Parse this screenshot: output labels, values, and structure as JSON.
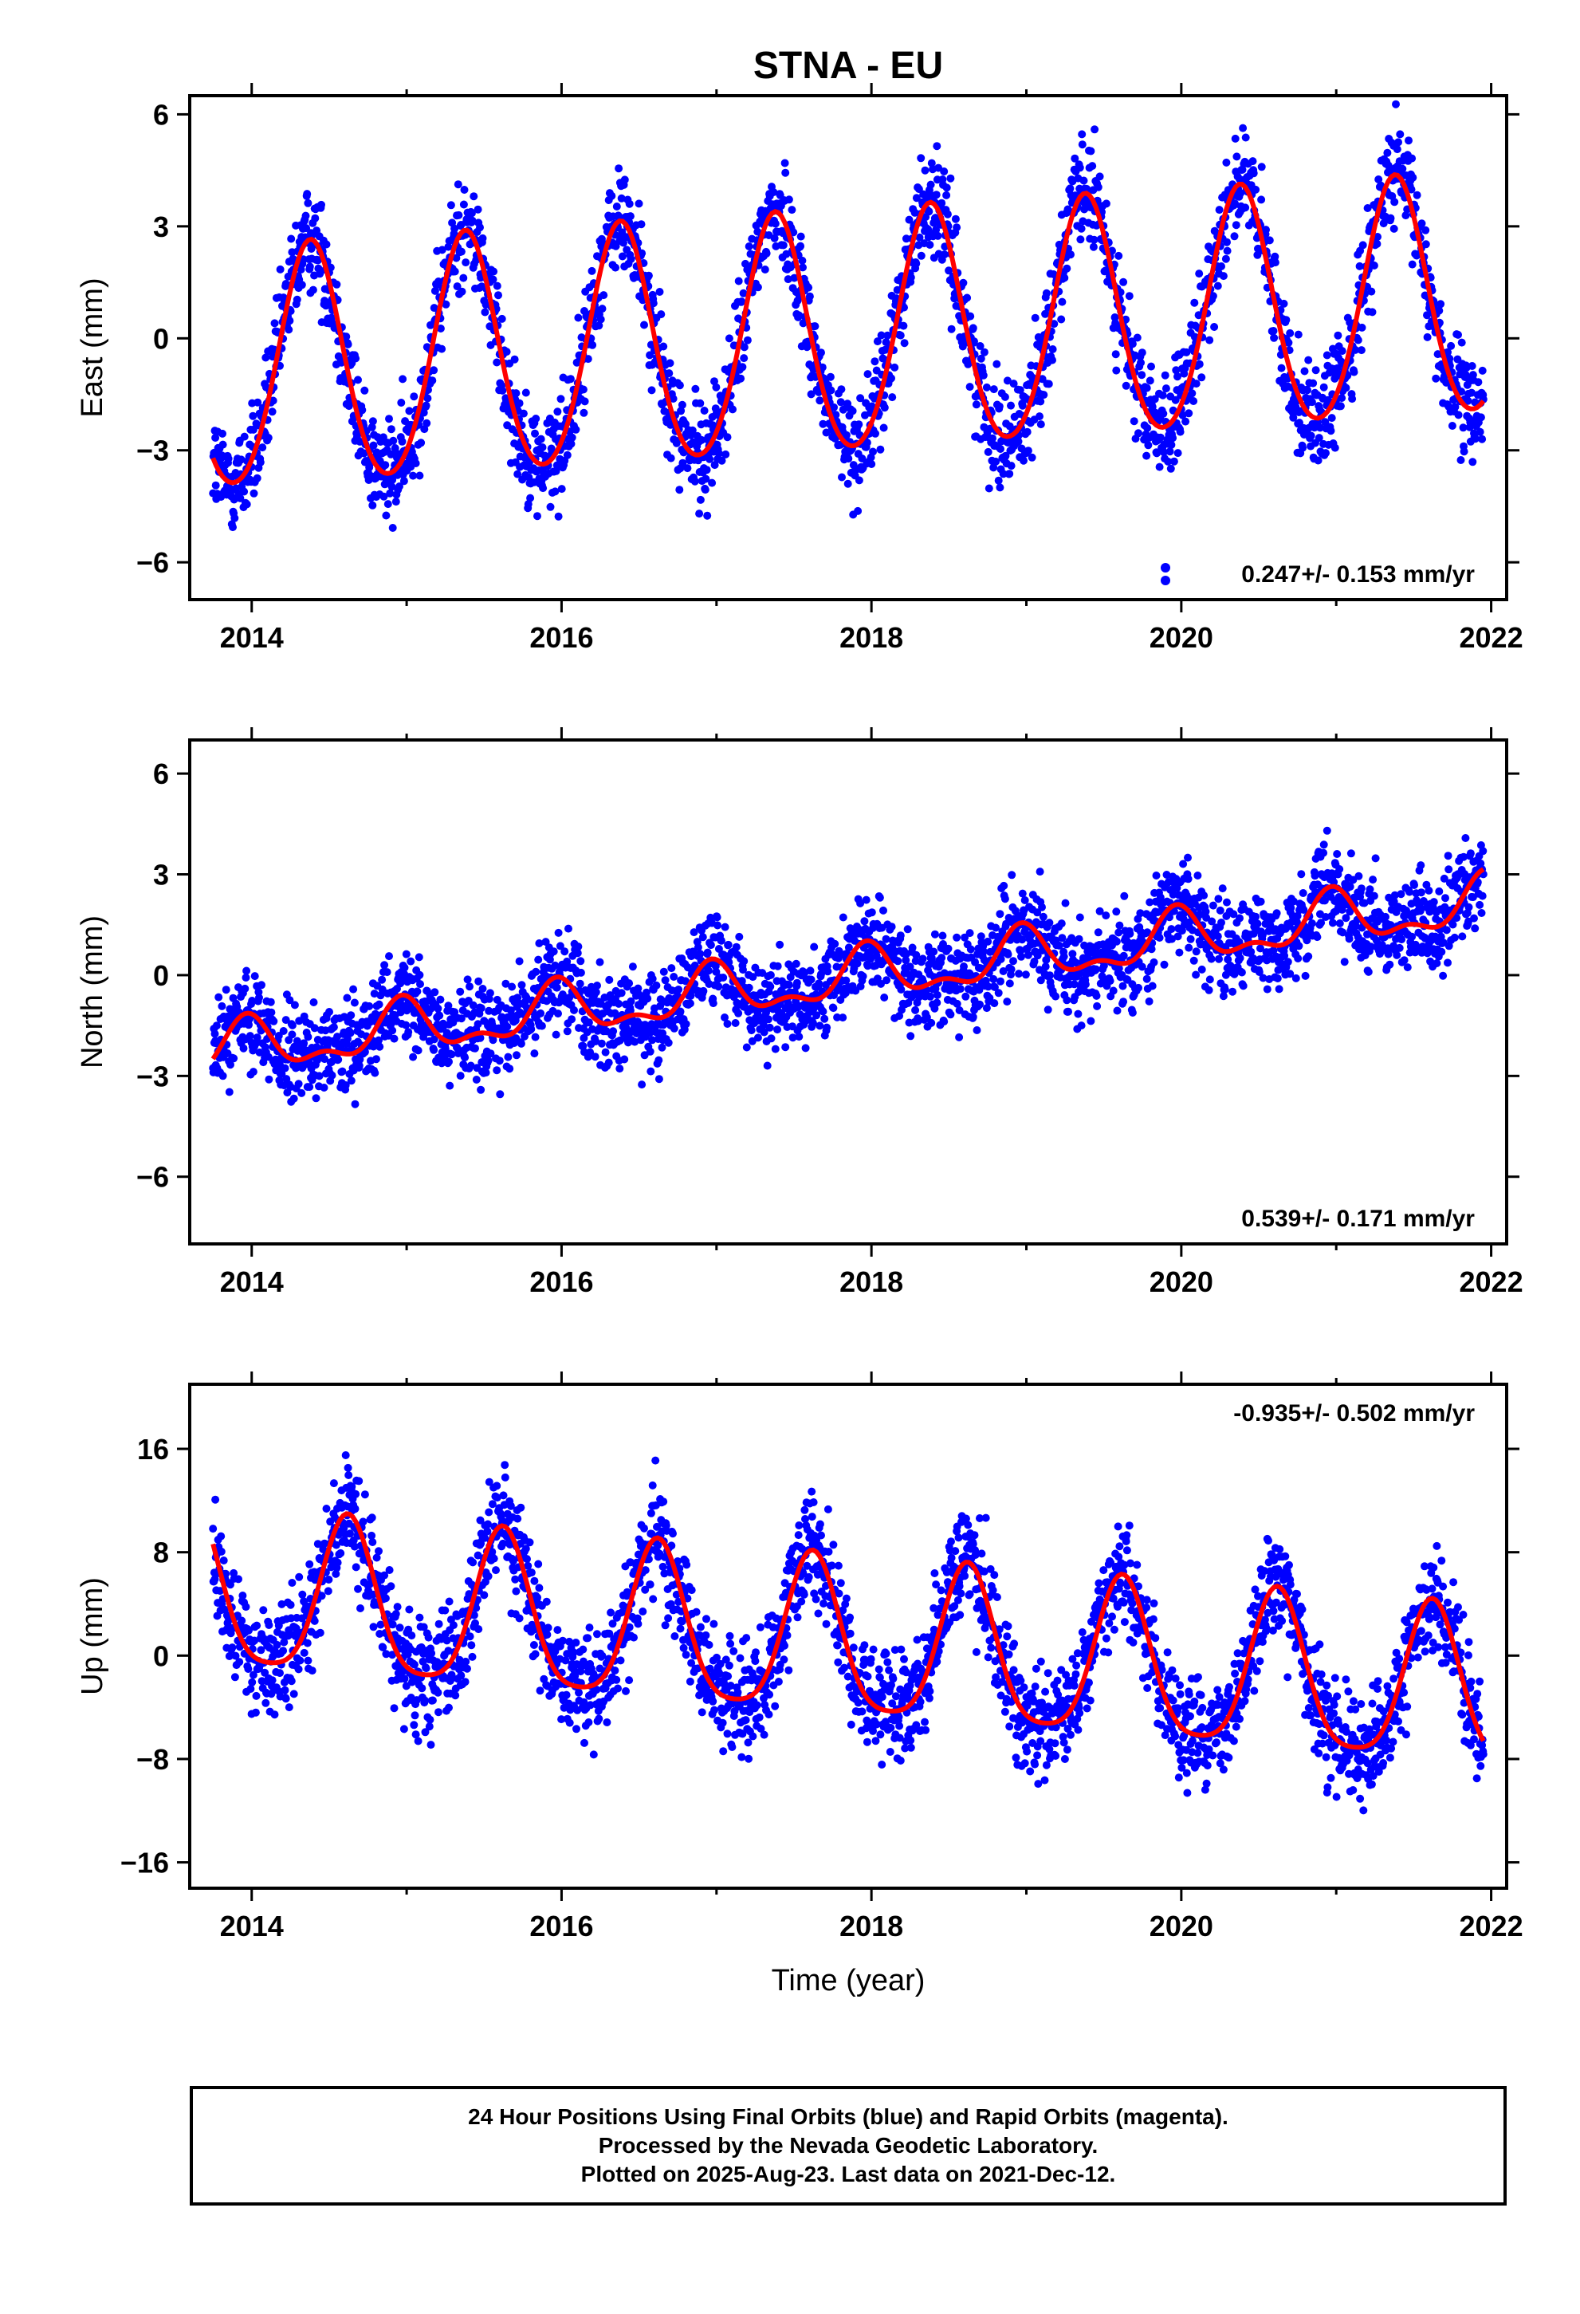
{
  "title": "STNA - EU",
  "xlabel": "Time (year)",
  "colors": {
    "data_points": "#0000ff",
    "fit_line": "#ff0000",
    "axes": "#000000"
  },
  "chart_data": [
    {
      "type": "scatter",
      "panel": "east",
      "ylabel": "East (mm)",
      "xlim": [
        2013.6,
        2022.1
      ],
      "ylim": [
        -7,
        6.5
      ],
      "xticks": [
        "2014",
        "2016",
        "2018",
        "2020",
        "2022"
      ],
      "xtick_values": [
        2014,
        2016,
        2018,
        2020,
        2022
      ],
      "yticks": [
        "6",
        "3",
        "0",
        "−3",
        "−6"
      ],
      "ytick_values": [
        6,
        3,
        0,
        -3,
        -6
      ],
      "annotation": "0.247+/- 0.153 mm/yr",
      "annotation_position": "bottom-right",
      "series_fit": {
        "x_range": [
          2013.75,
          2021.95
        ],
        "rate_mm_yr": 0.247,
        "offset_mm": -1.0,
        "annual_amplitude_mm": 3.2,
        "annual_peak_year_fraction": 0.38,
        "semiannual_amplitude_mm": 0.3,
        "fit_color": "#ff0000"
      },
      "scatter": {
        "x_range": [
          2013.75,
          2021.95
        ],
        "noise_mm": 1.0,
        "n_points": 2700
      }
    },
    {
      "type": "scatter",
      "panel": "north",
      "ylabel": "North (mm)",
      "xlim": [
        2013.6,
        2022.1
      ],
      "ylim": [
        -8,
        7
      ],
      "xticks": [
        "2014",
        "2016",
        "2018",
        "2020",
        "2022"
      ],
      "xtick_values": [
        2014,
        2016,
        2018,
        2020,
        2022
      ],
      "yticks": [
        "6",
        "3",
        "0",
        "−3",
        "−6"
      ],
      "ytick_values": [
        6,
        3,
        0,
        -3,
        -6
      ],
      "annotation": "0.539+/- 0.171 mm/yr",
      "annotation_position": "bottom-right",
      "series_fit": {
        "x_range": [
          2013.75,
          2021.95
        ],
        "rate_mm_yr": 0.539,
        "offset_mm": -2.3,
        "annual_amplitude_mm": 0.7,
        "annual_peak_year_fraction": 0.97,
        "semiannual_amplitude_mm": 0.35,
        "fit_color": "#ff0000"
      },
      "scatter": {
        "x_range": [
          2013.75,
          2021.95
        ],
        "noise_mm": 1.0,
        "n_points": 2700
      }
    },
    {
      "type": "scatter",
      "panel": "up",
      "ylabel": "Up (mm)",
      "xlim": [
        2013.6,
        2022.1
      ],
      "ylim": [
        -18,
        21
      ],
      "xticks": [
        "2014",
        "2016",
        "2018",
        "2020",
        "2022"
      ],
      "xtick_values": [
        2014,
        2016,
        2018,
        2020,
        2022
      ],
      "yticks": [
        "16",
        "8",
        "0",
        "−8",
        "−16"
      ],
      "ytick_values": [
        16,
        8,
        0,
        -8,
        -16
      ],
      "annotation": "-0.935+/- 0.502 mm/yr",
      "annotation_position": "top-right",
      "series_fit": {
        "x_range": [
          2013.75,
          2021.95
        ],
        "rate_mm_yr": -0.935,
        "offset_mm": 4.6,
        "annual_amplitude_mm": 6.0,
        "annual_peak_year_fraction": 0.62,
        "semiannual_amplitude_mm": 1.2,
        "fit_color": "#ff0000"
      },
      "scatter": {
        "x_range": [
          2013.75,
          2021.95
        ],
        "noise_mm": 3.0,
        "n_points": 2700
      }
    }
  ],
  "footer": {
    "line1": "24 Hour Positions Using Final Orbits (blue) and Rapid Orbits (magenta).",
    "line2": "Processed by the Nevada Geodetic Laboratory.",
    "line3": "Plotted on 2025-Aug-23. Last data on 2021-Dec-12."
  }
}
